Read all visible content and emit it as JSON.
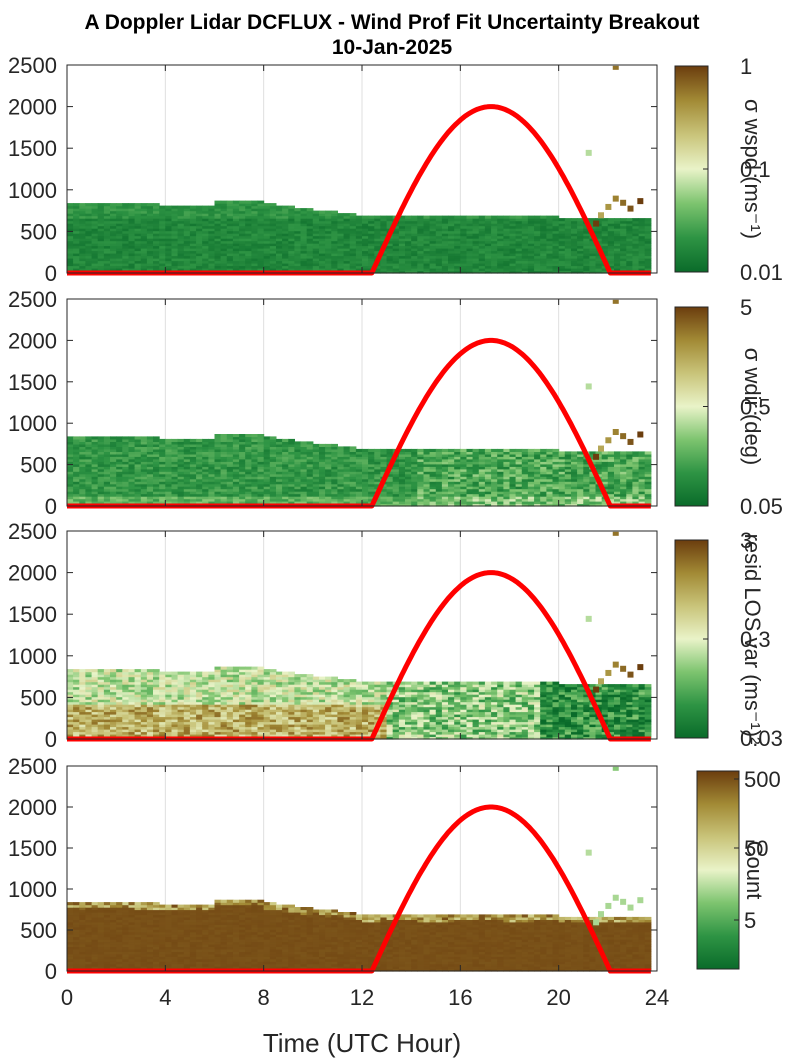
{
  "figure": {
    "title_line1": "A Doppler Lidar DCFLUX - Wind Prof Fit Uncertainty Breakout",
    "title_line2": "10-Jan-2025",
    "xlabel": "Time (UTC Hour)"
  },
  "chart_data": [
    {
      "type": "heatmap",
      "x_ticks": [
        0,
        4,
        8,
        12,
        16,
        20,
        24
      ],
      "y_ticks": [
        0,
        500,
        1000,
        1500,
        2000,
        2500
      ],
      "xlim": [
        0,
        24
      ],
      "ylim": [
        0,
        2500
      ],
      "grid": true,
      "colorbar": {
        "label": "σ wspd (ms⁻¹)",
        "ticks": [
          "1",
          "0.1",
          "0.01"
        ],
        "scale": "log",
        "range": [
          0.01,
          1
        ]
      },
      "overlay_line": {
        "color": "#ff0000",
        "x_start": 12.4,
        "x_peak": 17.25,
        "x_end": 22.1,
        "y_peak": 2000
      }
    },
    {
      "type": "heatmap",
      "x_ticks": [
        0,
        4,
        8,
        12,
        16,
        20,
        24
      ],
      "y_ticks": [
        0,
        500,
        1000,
        1500,
        2000,
        2500
      ],
      "xlim": [
        0,
        24
      ],
      "ylim": [
        0,
        2500
      ],
      "grid": true,
      "colorbar": {
        "label": "σ wdir (deg)",
        "ticks": [
          "5",
          "0.5",
          "0.05"
        ],
        "scale": "log",
        "range": [
          0.05,
          5
        ]
      },
      "overlay_line": {
        "color": "#ff0000",
        "x_start": 12.4,
        "x_peak": 17.25,
        "x_end": 22.1,
        "y_peak": 2000
      }
    },
    {
      "type": "heatmap",
      "x_ticks": [
        0,
        4,
        8,
        12,
        16,
        20,
        24
      ],
      "y_ticks": [
        0,
        500,
        1000,
        1500,
        2000,
        2500
      ],
      "xlim": [
        0,
        24
      ],
      "ylim": [
        0,
        2500
      ],
      "grid": true,
      "colorbar": {
        "label": "resid LOS var (ms⁻¹)²",
        "ticks": [
          "3",
          "0.3",
          "0.03"
        ],
        "scale": "log",
        "range": [
          0.03,
          3
        ]
      },
      "overlay_line": {
        "color": "#ff0000",
        "x_start": 12.4,
        "x_peak": 17.25,
        "x_end": 22.1,
        "y_peak": 2000
      }
    },
    {
      "type": "heatmap",
      "x_ticks": [
        0,
        4,
        8,
        12,
        16,
        20,
        24
      ],
      "y_ticks": [
        0,
        500,
        1000,
        1500,
        2000,
        2500
      ],
      "xlim": [
        0,
        24
      ],
      "ylim": [
        0,
        2500
      ],
      "grid": true,
      "colorbar": {
        "label": "Count",
        "ticks": [
          "500",
          "50",
          "5"
        ],
        "scale": "log",
        "range": [
          1,
          500
        ]
      },
      "overlay_line": {
        "color": "#ff0000",
        "x_start": 12.4,
        "x_peak": 17.25,
        "x_end": 22.1,
        "y_peak": 2000
      }
    }
  ],
  "colors": {
    "colormap": [
      "#0a6b2a",
      "#2e9444",
      "#7dc46f",
      "#e9f3c8",
      "#c9c47a",
      "#a28a35",
      "#6b3d0e"
    ],
    "axis": "#262626",
    "grid": "#dfdfdf",
    "overlay": "#ff0000"
  }
}
